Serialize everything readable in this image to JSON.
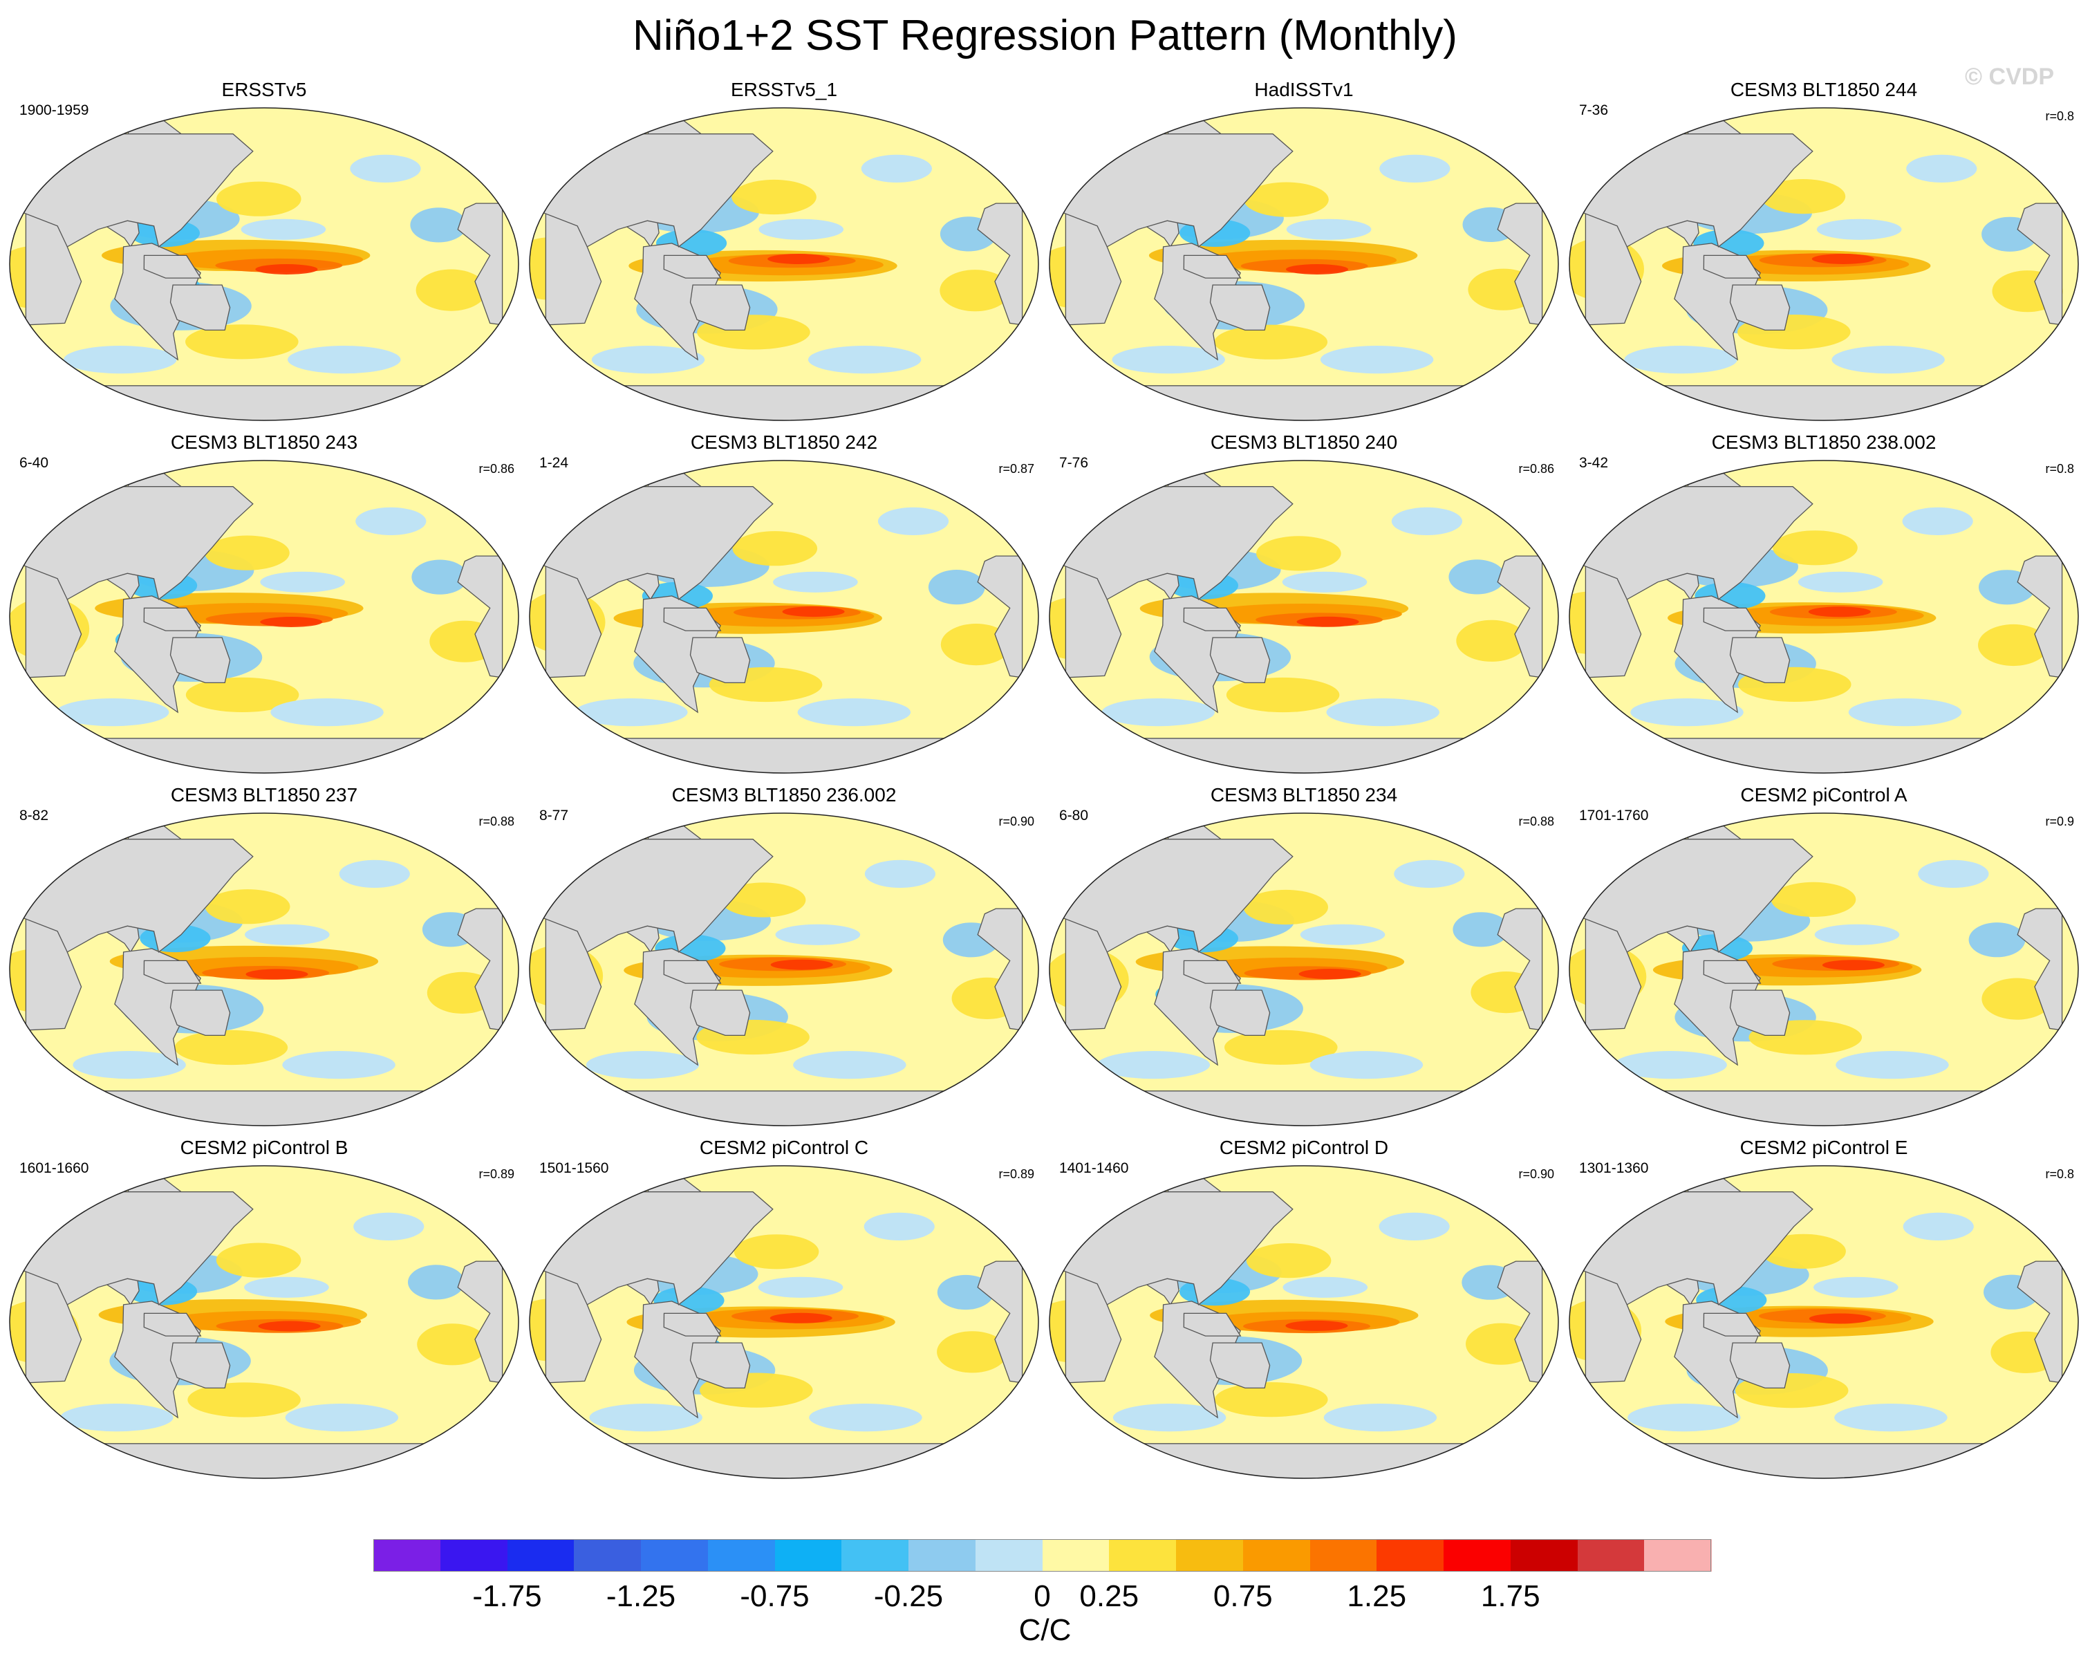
{
  "title": "Niño1+2 SST Regression Pattern (Monthly)",
  "copyright": "© CVDP",
  "chart_data": {
    "type": "heatmap",
    "title": "Niño1+2 SST Regression Pattern (Monthly)",
    "map_projection": "robinson-style global map, Pacific-centered",
    "panels": [
      {
        "title": "ERSSTv5",
        "period": "1900-1959",
        "corr": ""
      },
      {
        "title": "ERSSTv5_1",
        "period": "",
        "corr": ""
      },
      {
        "title": "HadISSTv1",
        "period": "",
        "corr": ""
      },
      {
        "title": "CESM3 BLT1850 244",
        "period": "7-36",
        "corr": "r=0.8"
      },
      {
        "title": "CESM3 BLT1850 243",
        "period": "6-40",
        "corr": "r=0.86"
      },
      {
        "title": "CESM3 BLT1850 242",
        "period": "1-24",
        "corr": "r=0.87"
      },
      {
        "title": "CESM3 BLT1850 240",
        "period": "7-76",
        "corr": "r=0.86"
      },
      {
        "title": "CESM3 BLT1850 238.002",
        "period": "3-42",
        "corr": "r=0.8"
      },
      {
        "title": "CESM3 BLT1850 237",
        "period": "8-82",
        "corr": "r=0.88"
      },
      {
        "title": "CESM3 BLT1850 236.002",
        "period": "8-77",
        "corr": "r=0.90"
      },
      {
        "title": "CESM3 BLT1850 234",
        "period": "6-80",
        "corr": "r=0.88"
      },
      {
        "title": "CESM2 piControl A",
        "period": "1701-1760",
        "corr": "r=0.9"
      },
      {
        "title": "CESM2 piControl B",
        "period": "1601-1660",
        "corr": "r=0.89"
      },
      {
        "title": "CESM2 piControl C",
        "period": "1501-1560",
        "corr": "r=0.89"
      },
      {
        "title": "CESM2 piControl D",
        "period": "1401-1460",
        "corr": "r=0.90"
      },
      {
        "title": "CESM2 piControl E",
        "period": "1301-1360",
        "corr": "r=0.8"
      }
    ],
    "colorbar": {
      "levels": [
        -2.0,
        -1.75,
        -1.5,
        -1.25,
        -1.0,
        -0.75,
        -0.5,
        -0.25,
        -0.1,
        0,
        0.1,
        0.25,
        0.5,
        0.75,
        1.0,
        1.25,
        1.5,
        1.75,
        2.0
      ],
      "colors": [
        "#7b1fe6",
        "#3a16f0",
        "#1a2cf0",
        "#3a5fe0",
        "#3373ee",
        "#2b90f6",
        "#0eb0f5",
        "#43c1f4",
        "#8ecbef",
        "#bfe3f5",
        "#fff9a5",
        "#fde33d",
        "#f7bc10",
        "#fa9a00",
        "#fb7400",
        "#fc3a00",
        "#fb0000",
        "#cc0000",
        "#d4393b",
        "#f9b0b0"
      ],
      "tick_labels": [
        "-1.75",
        "-1.25",
        "-0.75",
        "-0.25",
        "0",
        "0.25",
        "0.75",
        "1.25",
        "1.75"
      ],
      "units": "C/C"
    }
  }
}
